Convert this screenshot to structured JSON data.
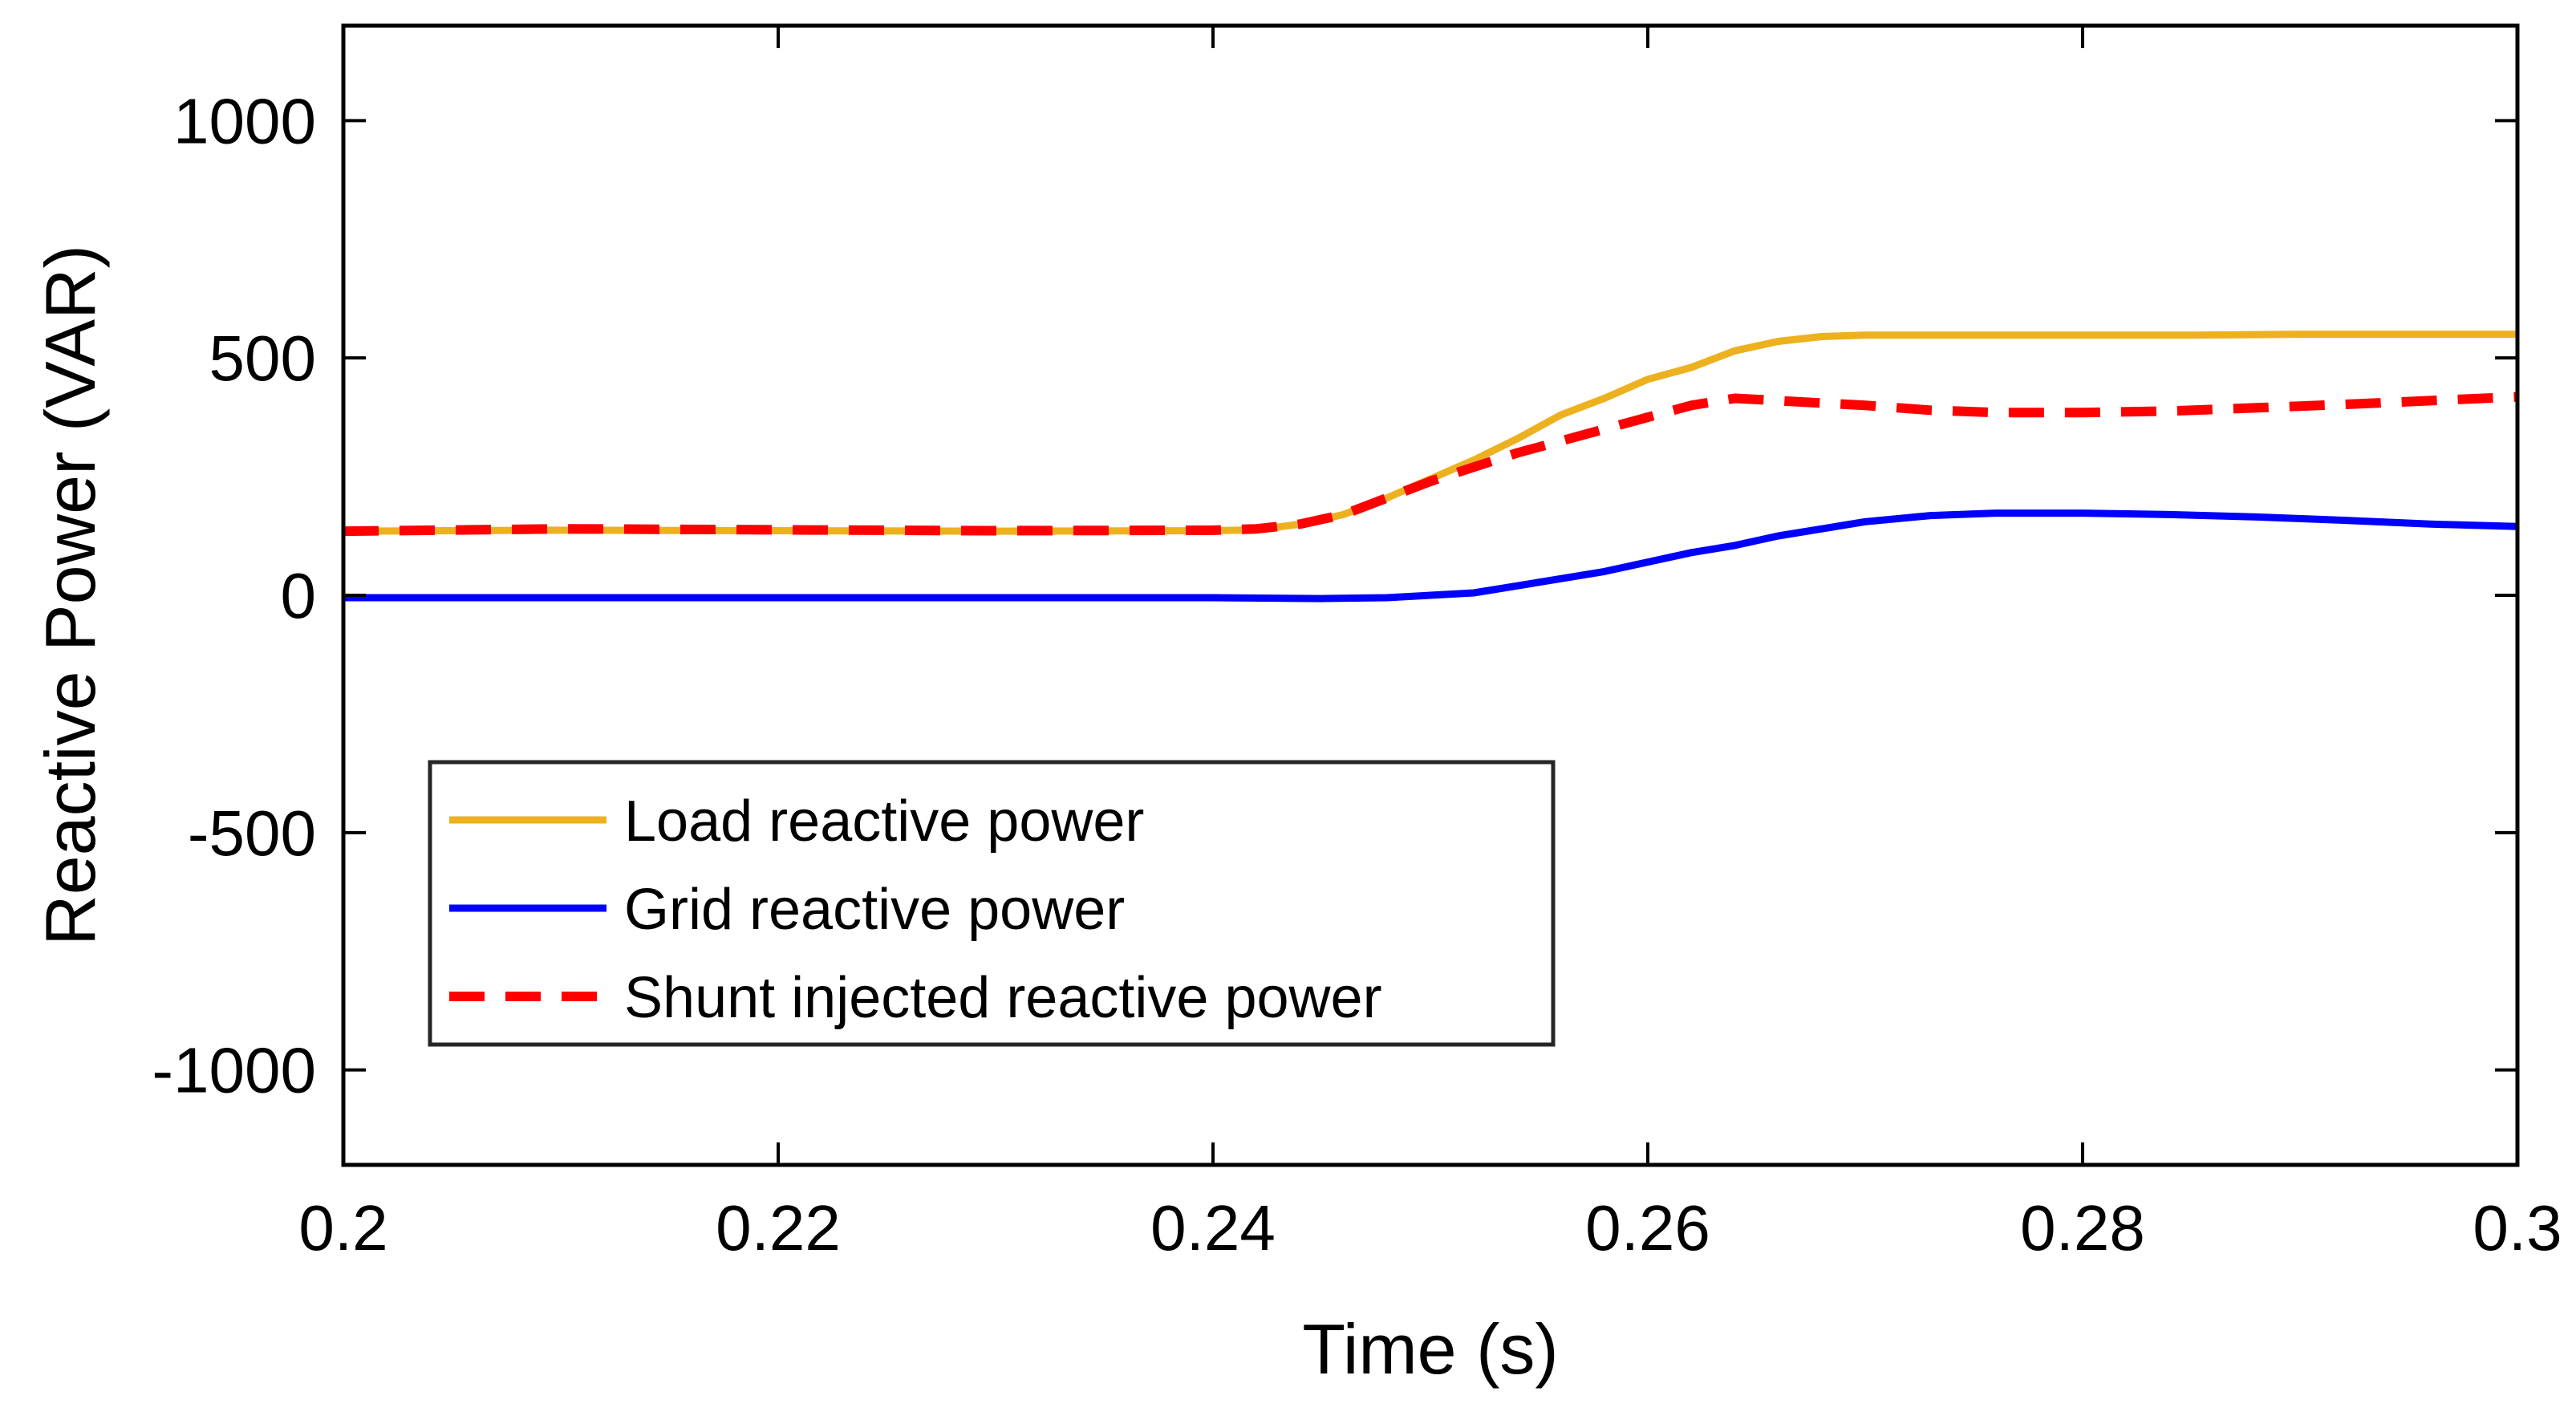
{
  "chart_data": {
    "type": "line",
    "title": "",
    "xlabel": "Time (s)",
    "ylabel": "Reactive Power (VAR)",
    "xlim": [
      0.2,
      0.3
    ],
    "ylim": [
      -1200,
      1200
    ],
    "xticks": [
      0.2,
      0.22,
      0.24,
      0.26,
      0.28,
      0.3
    ],
    "xtick_labels": [
      "0.2",
      "0.22",
      "0.24",
      "0.26",
      "0.28",
      "0.3"
    ],
    "yticks": [
      -1000,
      -500,
      0,
      500,
      1000
    ],
    "ytick_labels": [
      "-1000",
      "-500",
      "0",
      "500",
      "1000"
    ],
    "grid": false,
    "legend_position": "lower-left",
    "series": [
      {
        "name": "Load reactive power",
        "color": "#EDB120",
        "style": "solid",
        "points": [
          [
            0.2,
            135
          ],
          [
            0.21,
            137
          ],
          [
            0.22,
            136
          ],
          [
            0.23,
            135
          ],
          [
            0.24,
            136
          ],
          [
            0.242,
            138
          ],
          [
            0.244,
            150
          ],
          [
            0.246,
            170
          ],
          [
            0.248,
            205
          ],
          [
            0.25,
            245
          ],
          [
            0.252,
            285
          ],
          [
            0.254,
            330
          ],
          [
            0.256,
            380
          ],
          [
            0.258,
            415
          ],
          [
            0.26,
            455
          ],
          [
            0.262,
            480
          ],
          [
            0.264,
            515
          ],
          [
            0.266,
            535
          ],
          [
            0.268,
            545
          ],
          [
            0.27,
            548
          ],
          [
            0.275,
            548
          ],
          [
            0.28,
            548
          ],
          [
            0.285,
            548
          ],
          [
            0.29,
            550
          ],
          [
            0.3,
            550
          ]
        ]
      },
      {
        "name": "Grid reactive power",
        "color": "#0000FF",
        "style": "solid",
        "points": [
          [
            0.2,
            -5
          ],
          [
            0.21,
            -5
          ],
          [
            0.22,
            -5
          ],
          [
            0.23,
            -5
          ],
          [
            0.24,
            -5
          ],
          [
            0.245,
            -7
          ],
          [
            0.248,
            -5
          ],
          [
            0.25,
            0
          ],
          [
            0.252,
            5
          ],
          [
            0.254,
            20
          ],
          [
            0.256,
            35
          ],
          [
            0.258,
            50
          ],
          [
            0.26,
            70
          ],
          [
            0.262,
            90
          ],
          [
            0.264,
            105
          ],
          [
            0.266,
            125
          ],
          [
            0.268,
            140
          ],
          [
            0.27,
            155
          ],
          [
            0.273,
            168
          ],
          [
            0.276,
            173
          ],
          [
            0.28,
            173
          ],
          [
            0.284,
            170
          ],
          [
            0.288,
            165
          ],
          [
            0.292,
            158
          ],
          [
            0.296,
            150
          ],
          [
            0.3,
            145
          ]
        ]
      },
      {
        "name": "Shunt injected reactive power",
        "color": "#FF0000",
        "style": "dashed",
        "points": [
          [
            0.2,
            135
          ],
          [
            0.21,
            140
          ],
          [
            0.22,
            138
          ],
          [
            0.23,
            136
          ],
          [
            0.24,
            137
          ],
          [
            0.242,
            140
          ],
          [
            0.244,
            150
          ],
          [
            0.246,
            170
          ],
          [
            0.248,
            205
          ],
          [
            0.25,
            240
          ],
          [
            0.252,
            270
          ],
          [
            0.254,
            300
          ],
          [
            0.256,
            325
          ],
          [
            0.258,
            350
          ],
          [
            0.26,
            375
          ],
          [
            0.262,
            400
          ],
          [
            0.264,
            415
          ],
          [
            0.266,
            410
          ],
          [
            0.268,
            405
          ],
          [
            0.27,
            400
          ],
          [
            0.273,
            390
          ],
          [
            0.276,
            385
          ],
          [
            0.28,
            385
          ],
          [
            0.284,
            388
          ],
          [
            0.288,
            395
          ],
          [
            0.292,
            402
          ],
          [
            0.296,
            410
          ],
          [
            0.3,
            418
          ]
        ]
      }
    ]
  }
}
